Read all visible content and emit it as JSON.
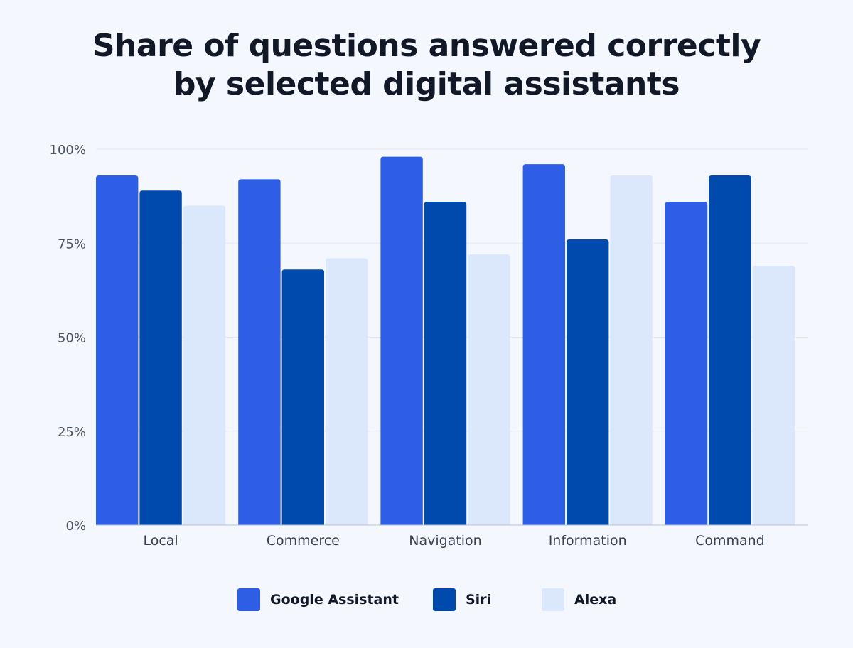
{
  "chart_data": {
    "type": "bar",
    "title_lines": [
      "Share of questions answered correctly",
      "by selected digital assistants"
    ],
    "categories": [
      "Local",
      "Commerce",
      "Navigation",
      "Information",
      "Command"
    ],
    "series": [
      {
        "name": "Google Assistant",
        "color": "#2f5ee6",
        "values": [
          93,
          92,
          98,
          96,
          86
        ]
      },
      {
        "name": "Siri",
        "color": "#004aad",
        "values": [
          89,
          68,
          86,
          76,
          93
        ]
      },
      {
        "name": "Alexa",
        "color": "#dbe7fb",
        "values": [
          85,
          71,
          72,
          93,
          69
        ]
      }
    ],
    "y_ticks": [
      "0%",
      "25%",
      "50%",
      "75%",
      "100%"
    ],
    "ylim": [
      0,
      100
    ],
    "grid": true,
    "legend_position": "bottom-center",
    "xlabel": "",
    "ylabel": ""
  }
}
